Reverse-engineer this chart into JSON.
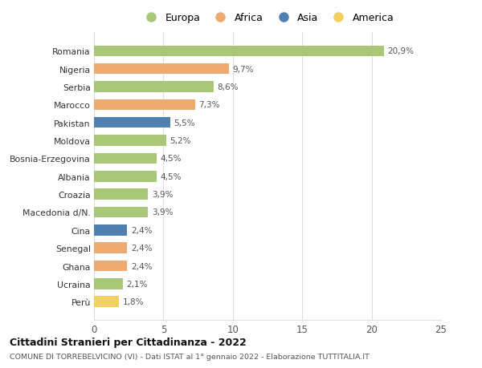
{
  "countries": [
    "Romania",
    "Nigeria",
    "Serbia",
    "Marocco",
    "Pakistan",
    "Moldova",
    "Bosnia-Erzegovina",
    "Albania",
    "Croazia",
    "Macedonia d/N.",
    "Cina",
    "Senegal",
    "Ghana",
    "Ucraina",
    "Perù"
  ],
  "values": [
    20.9,
    9.7,
    8.6,
    7.3,
    5.5,
    5.2,
    4.5,
    4.5,
    3.9,
    3.9,
    2.4,
    2.4,
    2.4,
    2.1,
    1.8
  ],
  "labels": [
    "20,9%",
    "9,7%",
    "8,6%",
    "7,3%",
    "5,5%",
    "5,2%",
    "4,5%",
    "4,5%",
    "3,9%",
    "3,9%",
    "2,4%",
    "2,4%",
    "2,4%",
    "2,1%",
    "1,8%"
  ],
  "continents": [
    "Europa",
    "Africa",
    "Europa",
    "Africa",
    "Asia",
    "Europa",
    "Europa",
    "Europa",
    "Europa",
    "Europa",
    "Asia",
    "Africa",
    "Africa",
    "Europa",
    "America"
  ],
  "colors": {
    "Europa": "#a8c878",
    "Africa": "#f0aa70",
    "Asia": "#5080b0",
    "America": "#f0d060"
  },
  "legend_order": [
    "Europa",
    "Africa",
    "Asia",
    "America"
  ],
  "title": "Cittadini Stranieri per Cittadinanza - 2022",
  "subtitle": "COMUNE DI TORREBELVICINO (VI) - Dati ISTAT al 1° gennaio 2022 - Elaborazione TUTTITALIA.IT",
  "xlim": [
    0,
    25
  ],
  "xticks": [
    0,
    5,
    10,
    15,
    20,
    25
  ],
  "background_color": "#ffffff",
  "grid_color": "#e0e0e0"
}
